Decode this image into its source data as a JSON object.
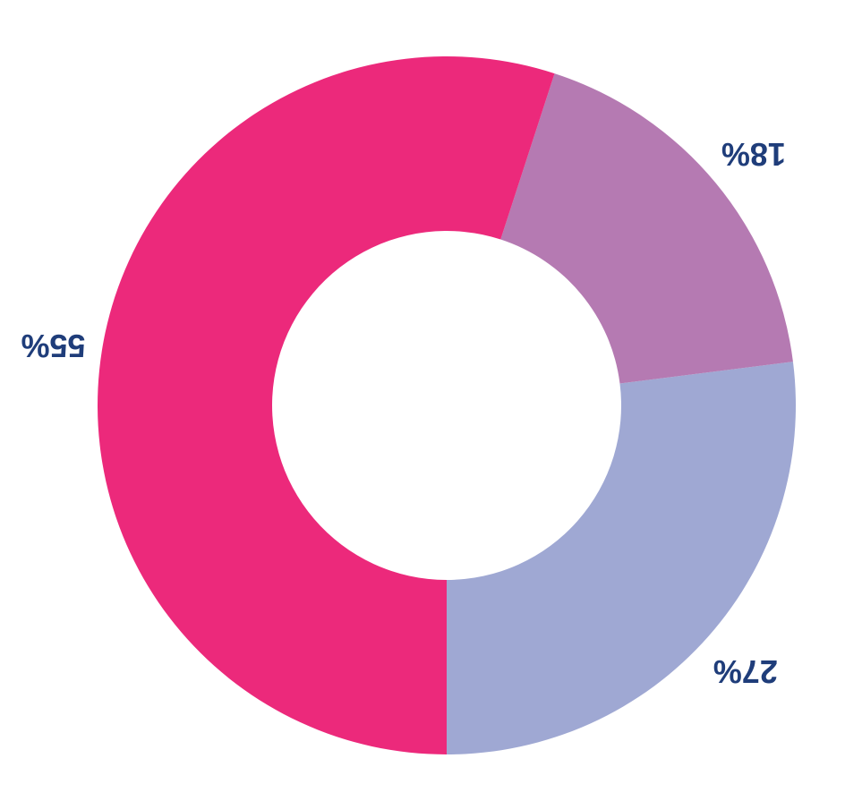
{
  "chart_data": {
    "type": "donut",
    "values": [
      27,
      18,
      55
    ],
    "value_labels": [
      "27%",
      "18%",
      "55%"
    ],
    "colors": [
      "#9fa8d3",
      "#b57ab2",
      "#ec297b"
    ]
  }
}
